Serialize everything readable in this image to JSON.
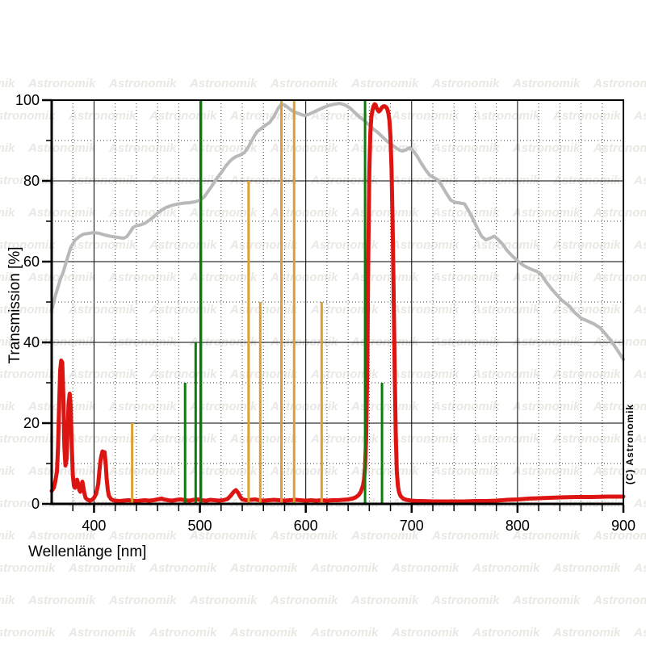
{
  "watermark": {
    "text": "Astronomik",
    "color": "#e9e8e3"
  },
  "copyright_label": "(C) Astronomik",
  "chart_data": {
    "type": "line",
    "title": "",
    "xlabel": "Wellenlänge [nm]",
    "ylabel": "Transmission [%]",
    "xlim": [
      360,
      900
    ],
    "ylim": [
      0,
      100
    ],
    "x_major_ticks": [
      400,
      500,
      600,
      700,
      800,
      900
    ],
    "x_tick_labels": [
      "400",
      "500",
      "600",
      "700",
      "800",
      "900"
    ],
    "x_minor_step": 20,
    "y_major_ticks": [
      0,
      20,
      40,
      60,
      80,
      100
    ],
    "y_tick_labels": [
      "0",
      "20",
      "40",
      "60",
      "80",
      "100"
    ],
    "y_minor_step": 10,
    "grid": "solid major lines, dotted minor lines",
    "legend_position": "none",
    "axis_color": "#000000",
    "series": [
      {
        "name": "sensor-sensitivity-curve",
        "color": "#b9b9b9",
        "width": 4,
        "points": [
          [
            360,
            48
          ],
          [
            364,
            52
          ],
          [
            368,
            55.5
          ],
          [
            371,
            57.5
          ],
          [
            375,
            61
          ],
          [
            378,
            63.5
          ],
          [
            382,
            65.3
          ],
          [
            386,
            66.2
          ],
          [
            390,
            66.8
          ],
          [
            395,
            67
          ],
          [
            400,
            67.2
          ],
          [
            405,
            67
          ],
          [
            410,
            66.6
          ],
          [
            415,
            66.3
          ],
          [
            420,
            66.1
          ],
          [
            425,
            65.9
          ],
          [
            428,
            65.8
          ],
          [
            431,
            66.2
          ],
          [
            434,
            67.3
          ],
          [
            437,
            68.5
          ],
          [
            440,
            68.9
          ],
          [
            444,
            69.1
          ],
          [
            448,
            69.5
          ],
          [
            452,
            70.2
          ],
          [
            456,
            71
          ],
          [
            460,
            72
          ],
          [
            464,
            72.8
          ],
          [
            468,
            73.4
          ],
          [
            472,
            73.8
          ],
          [
            476,
            74.1
          ],
          [
            480,
            74.3
          ],
          [
            485,
            74.5
          ],
          [
            490,
            74.6
          ],
          [
            495,
            74.8
          ],
          [
            500,
            75.2
          ],
          [
            504,
            76
          ],
          [
            508,
            77.5
          ],
          [
            512,
            79
          ],
          [
            516,
            80.6
          ],
          [
            520,
            82
          ],
          [
            524,
            83.5
          ],
          [
            528,
            84.8
          ],
          [
            531,
            85.5
          ],
          [
            534,
            86
          ],
          [
            538,
            86.4
          ],
          [
            542,
            87
          ],
          [
            546,
            88.5
          ],
          [
            550,
            90.5
          ],
          [
            554,
            92.2
          ],
          [
            558,
            93
          ],
          [
            562,
            93.8
          ],
          [
            566,
            94.5
          ],
          [
            570,
            96
          ],
          [
            574,
            98
          ],
          [
            577,
            99
          ],
          [
            580,
            98.8
          ],
          [
            584,
            98
          ],
          [
            588,
            97.2
          ],
          [
            592,
            96.8
          ],
          [
            596,
            96.4
          ],
          [
            599,
            96.2
          ],
          [
            603,
            96.5
          ],
          [
            607,
            97
          ],
          [
            612,
            97.6
          ],
          [
            617,
            98.2
          ],
          [
            622,
            98.7
          ],
          [
            627,
            99
          ],
          [
            632,
            99.2
          ],
          [
            637,
            98.8
          ],
          [
            642,
            98
          ],
          [
            646,
            97
          ],
          [
            650,
            96
          ],
          [
            653,
            95.4
          ],
          [
            656,
            94.8
          ],
          [
            660,
            93.8
          ],
          [
            664,
            92.8
          ],
          [
            668,
            92
          ],
          [
            672,
            91
          ],
          [
            676,
            90
          ],
          [
            680,
            89.2
          ],
          [
            684,
            88.4
          ],
          [
            688,
            87.7
          ],
          [
            691,
            87.4
          ],
          [
            694,
            87.6
          ],
          [
            698,
            88.2
          ],
          [
            701,
            87.6
          ],
          [
            705,
            86.2
          ],
          [
            709,
            84.4
          ],
          [
            713,
            82.8
          ],
          [
            717,
            81.4
          ],
          [
            721,
            80.8
          ],
          [
            725,
            80.2
          ],
          [
            729,
            78.6
          ],
          [
            733,
            76.8
          ],
          [
            737,
            75.2
          ],
          [
            741,
            74.7
          ],
          [
            746,
            74.5
          ],
          [
            750,
            74.3
          ],
          [
            754,
            72.5
          ],
          [
            758,
            70.5
          ],
          [
            762,
            68.3
          ],
          [
            766,
            66.3
          ],
          [
            770,
            65.4
          ],
          [
            774,
            65.8
          ],
          [
            778,
            66.3
          ],
          [
            782,
            65.4
          ],
          [
            786,
            64.3
          ],
          [
            790,
            62.8
          ],
          [
            795,
            61.4
          ],
          [
            800,
            60.2
          ],
          [
            806,
            59
          ],
          [
            812,
            58.2
          ],
          [
            818,
            57.6
          ],
          [
            822,
            57
          ],
          [
            827,
            55
          ],
          [
            832,
            53.3
          ],
          [
            837,
            51.8
          ],
          [
            842,
            50.4
          ],
          [
            848,
            49.2
          ],
          [
            854,
            47.4
          ],
          [
            860,
            46
          ],
          [
            866,
            45.3
          ],
          [
            872,
            44.6
          ],
          [
            878,
            43.6
          ],
          [
            884,
            41.8
          ],
          [
            889,
            40.2
          ],
          [
            894,
            38.2
          ],
          [
            900,
            35.8
          ]
        ]
      },
      {
        "name": "filter-transmission-curve",
        "color": "#dc1512",
        "width": 5,
        "points": [
          [
            360,
            3.2
          ],
          [
            362,
            4
          ],
          [
            363,
            5
          ],
          [
            365,
            8
          ],
          [
            366,
            14
          ],
          [
            367,
            24
          ],
          [
            368,
            33
          ],
          [
            369,
            35.5
          ],
          [
            370,
            35
          ],
          [
            371,
            27
          ],
          [
            372,
            14
          ],
          [
            373,
            9.5
          ],
          [
            374,
            11
          ],
          [
            375,
            18
          ],
          [
            376,
            25
          ],
          [
            377,
            27.3
          ],
          [
            378,
            24
          ],
          [
            379,
            14
          ],
          [
            380,
            7
          ],
          [
            381,
            4.5
          ],
          [
            382,
            4
          ],
          [
            383,
            5
          ],
          [
            384,
            6
          ],
          [
            385,
            5
          ],
          [
            386,
            3.5
          ],
          [
            387,
            3
          ],
          [
            388,
            4.5
          ],
          [
            389,
            5.5
          ],
          [
            390,
            4
          ],
          [
            391,
            2.5
          ],
          [
            392,
            1.5
          ],
          [
            394,
            1
          ],
          [
            396,
            0.8
          ],
          [
            398,
            1
          ],
          [
            400,
            1.5
          ],
          [
            402,
            2.5
          ],
          [
            404,
            5
          ],
          [
            405,
            8
          ],
          [
            406,
            10.5
          ],
          [
            407,
            12
          ],
          [
            408,
            13
          ],
          [
            409,
            12
          ],
          [
            410,
            12.8
          ],
          [
            411,
            10
          ],
          [
            412,
            6
          ],
          [
            413,
            3.5
          ],
          [
            414,
            2
          ],
          [
            416,
            1.2
          ],
          [
            418,
            0.9
          ],
          [
            420,
            0.8
          ],
          [
            424,
            0.7
          ],
          [
            428,
            0.8
          ],
          [
            432,
            0.9
          ],
          [
            436,
            0.8
          ],
          [
            440,
            0.7
          ],
          [
            444,
            0.8
          ],
          [
            448,
            0.9
          ],
          [
            452,
            0.8
          ],
          [
            456,
            0.9
          ],
          [
            460,
            1.1
          ],
          [
            464,
            1.3
          ],
          [
            466,
            1.1
          ],
          [
            470,
            0.9
          ],
          [
            474,
            0.8
          ],
          [
            478,
            1
          ],
          [
            482,
            1.1
          ],
          [
            486,
            0.9
          ],
          [
            490,
            0.8
          ],
          [
            494,
            1
          ],
          [
            498,
            1.1
          ],
          [
            502,
            0.9
          ],
          [
            506,
            0.8
          ],
          [
            510,
            1
          ],
          [
            514,
            0.9
          ],
          [
            518,
            0.8
          ],
          [
            522,
            0.9
          ],
          [
            526,
            1.2
          ],
          [
            529,
            2
          ],
          [
            532,
            3
          ],
          [
            534,
            3.4
          ],
          [
            536,
            2.8
          ],
          [
            538,
            1.8
          ],
          [
            540,
            1.1
          ],
          [
            544,
            0.9
          ],
          [
            548,
            1
          ],
          [
            552,
            1.1
          ],
          [
            556,
            0.9
          ],
          [
            560,
            0.8
          ],
          [
            565,
            0.9
          ],
          [
            570,
            1
          ],
          [
            575,
            0.9
          ],
          [
            580,
            0.8
          ],
          [
            585,
            0.9
          ],
          [
            590,
            1
          ],
          [
            595,
            0.9
          ],
          [
            600,
            0.8
          ],
          [
            605,
            0.9
          ],
          [
            610,
            0.8
          ],
          [
            615,
            0.9
          ],
          [
            620,
            0.8
          ],
          [
            625,
            0.9
          ],
          [
            630,
            0.9
          ],
          [
            635,
            1
          ],
          [
            640,
            1.1
          ],
          [
            644,
            1.3
          ],
          [
            647,
            1.6
          ],
          [
            650,
            2.2
          ],
          [
            652,
            3
          ],
          [
            654,
            4.5
          ],
          [
            655,
            6
          ],
          [
            656,
            9
          ],
          [
            657,
            16
          ],
          [
            658,
            32
          ],
          [
            659,
            60
          ],
          [
            660,
            82
          ],
          [
            661,
            92
          ],
          [
            662,
            96
          ],
          [
            663,
            97.5
          ],
          [
            664,
            98.5
          ],
          [
            665,
            99
          ],
          [
            666,
            98.8
          ],
          [
            667,
            98
          ],
          [
            668,
            97.5
          ],
          [
            669,
            97.2
          ],
          [
            670,
            97.4
          ],
          [
            671,
            97.8
          ],
          [
            672,
            98.2
          ],
          [
            673,
            98.4
          ],
          [
            674,
            98.5
          ],
          [
            675,
            98.4
          ],
          [
            676,
            98.2
          ],
          [
            677,
            97.8
          ],
          [
            678,
            96.8
          ],
          [
            679,
            95
          ],
          [
            680,
            91
          ],
          [
            681,
            83
          ],
          [
            682,
            70
          ],
          [
            683,
            52
          ],
          [
            684,
            33
          ],
          [
            685,
            17
          ],
          [
            686,
            8
          ],
          [
            687,
            4.5
          ],
          [
            688,
            3
          ],
          [
            689,
            2.2
          ],
          [
            690,
            1.8
          ],
          [
            692,
            1.3
          ],
          [
            695,
            1
          ],
          [
            700,
            0.8
          ],
          [
            705,
            0.7
          ],
          [
            710,
            0.7
          ],
          [
            720,
            0.6
          ],
          [
            730,
            0.6
          ],
          [
            740,
            0.6
          ],
          [
            750,
            0.6
          ],
          [
            760,
            0.7
          ],
          [
            770,
            0.7
          ],
          [
            780,
            0.8
          ],
          [
            790,
            1
          ],
          [
            800,
            1.1
          ],
          [
            810,
            1.3
          ],
          [
            820,
            1.4
          ],
          [
            830,
            1.5
          ],
          [
            840,
            1.6
          ],
          [
            855,
            1.7
          ],
          [
            870,
            1.7
          ],
          [
            885,
            1.8
          ],
          [
            900,
            1.8
          ]
        ]
      }
    ],
    "emission_lines": [
      {
        "name": "nebula-emission-lines",
        "color": "#0c7c0c",
        "width": 3,
        "lines": [
          [
            486,
            30
          ],
          [
            496,
            40
          ],
          [
            501,
            100
          ],
          [
            656,
            100
          ],
          [
            672,
            30
          ]
        ]
      },
      {
        "name": "streetlamp-emission-lines",
        "color": "#d9a132",
        "width": 3,
        "lines": [
          [
            436,
            20
          ],
          [
            546,
            80
          ],
          [
            557,
            50
          ],
          [
            577,
            100
          ],
          [
            589,
            100
          ],
          [
            615,
            50
          ]
        ]
      }
    ]
  }
}
